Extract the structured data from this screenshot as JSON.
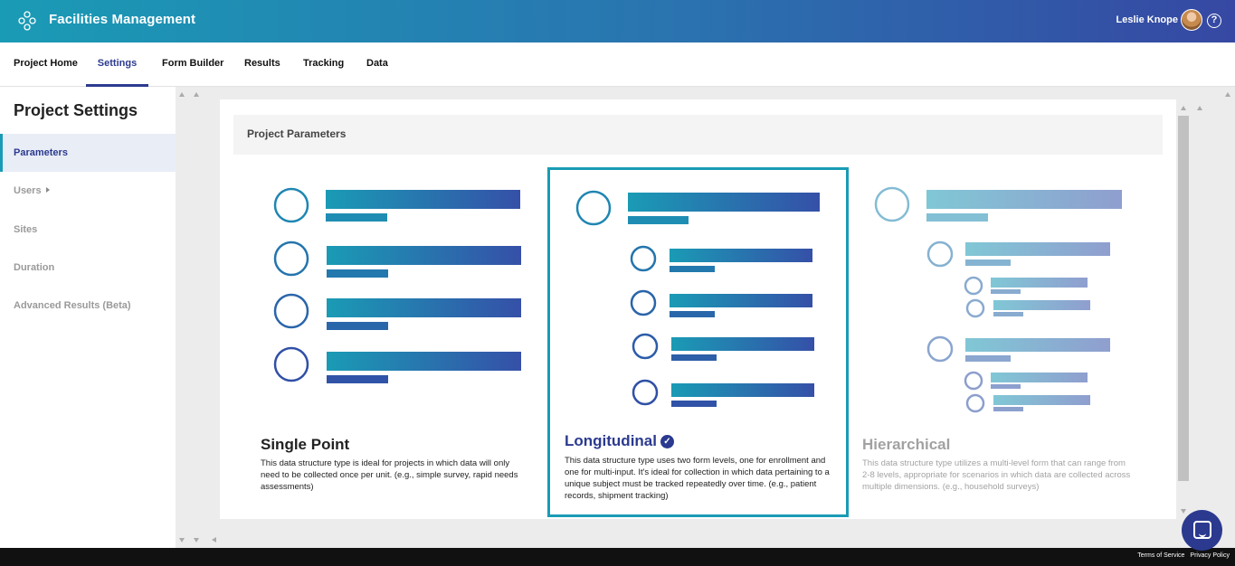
{
  "header": {
    "app_title": "Facilities Management",
    "user_name": "Leslie Knope",
    "help_icon": "?"
  },
  "nav": {
    "tabs": [
      {
        "label": "Project Home"
      },
      {
        "label": "Settings",
        "active": true
      },
      {
        "label": "Form Builder"
      },
      {
        "label": "Results"
      },
      {
        "label": "Tracking"
      },
      {
        "label": "Data"
      }
    ]
  },
  "sidebar": {
    "title": "Project Settings",
    "items": [
      {
        "label": "Parameters",
        "active": true
      },
      {
        "label": "Users"
      },
      {
        "label": "Sites"
      },
      {
        "label": "Duration"
      },
      {
        "label": "Advanced Results (Beta)"
      }
    ]
  },
  "main": {
    "section_title": "Project Parameters",
    "options": [
      {
        "title": "Single Point",
        "description": "This data structure type is ideal for projects in which data will only need to be collected once per unit. (e.g., simple survey, rapid needs assessments)",
        "selected": false
      },
      {
        "title": "Longitudinal",
        "description": "This data structure type uses two form levels, one for enrollment and one for multi-input. It's ideal for collection in which data pertaining to a unique subject must be tracked repeatedly over time. (e.g., patient records, shipment tracking)",
        "selected": true
      },
      {
        "title": "Hierarchical",
        "description": "This data structure type utilizes a multi-level form that can range from 2-8 levels, appropriate for scenarios in which data are collected across multiple dimensions. (e.g., household surveys)",
        "selected": false
      }
    ]
  },
  "footer": {
    "terms": "Terms of Service",
    "privacy": "Privacy Policy"
  },
  "icons": {
    "logo": "network-logo-icon",
    "check": "check-circle-icon",
    "chat": "chat-icon"
  },
  "colors": {
    "brand_teal": "#1a9bb5",
    "brand_navy": "#2b3a8f",
    "footer": "#111111"
  }
}
